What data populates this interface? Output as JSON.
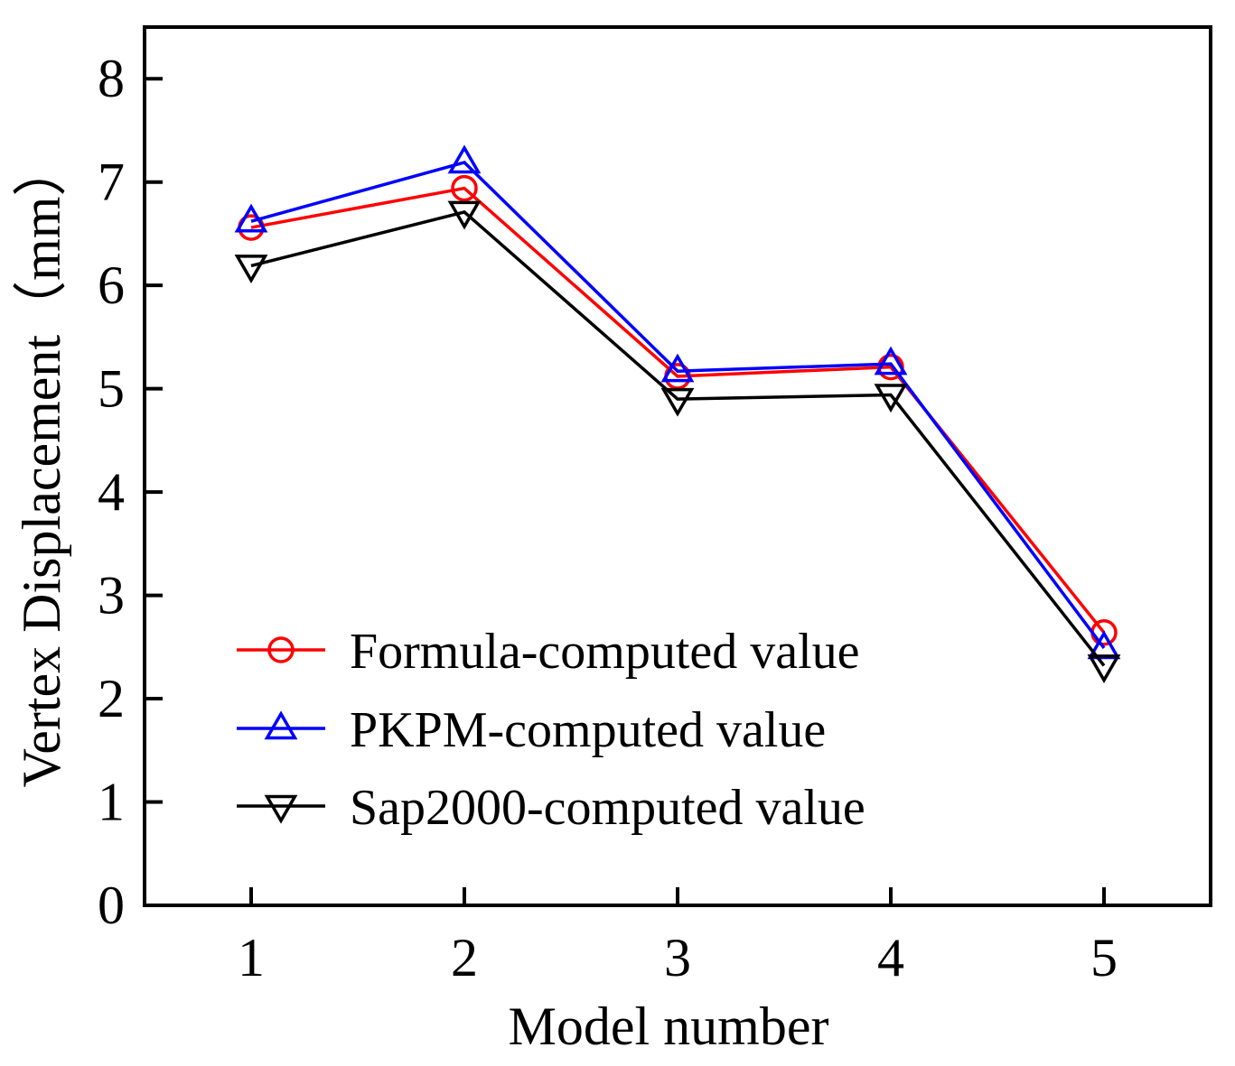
{
  "chart_data": {
    "type": "line",
    "title": "",
    "xlabel": "Model number",
    "ylabel": "Vertex Displacement（mm）",
    "x": [
      1,
      2,
      3,
      4,
      5
    ],
    "xlim": [
      0.5,
      5.5
    ],
    "ylim": [
      0,
      8.5
    ],
    "xticks": [
      "1",
      "2",
      "3",
      "4",
      "5"
    ],
    "yticks": [
      "0",
      "1",
      "2",
      "3",
      "4",
      "5",
      "6",
      "7",
      "8"
    ],
    "grid": false,
    "legend_position": "bottom-left",
    "series": [
      {
        "name": "Formula-computed value",
        "color": "#ff0000",
        "marker": "circle",
        "values": [
          6.56,
          6.94,
          5.12,
          5.21,
          2.64
        ]
      },
      {
        "name": "PKPM-computed value",
        "color": "#0000ff",
        "marker": "triangle-up",
        "values": [
          6.62,
          7.19,
          5.17,
          5.24,
          2.49
        ]
      },
      {
        "name": "Sap2000-computed value",
        "color": "#000000",
        "marker": "triangle-down",
        "values": [
          6.19,
          6.71,
          4.9,
          4.94,
          2.32
        ]
      }
    ]
  }
}
